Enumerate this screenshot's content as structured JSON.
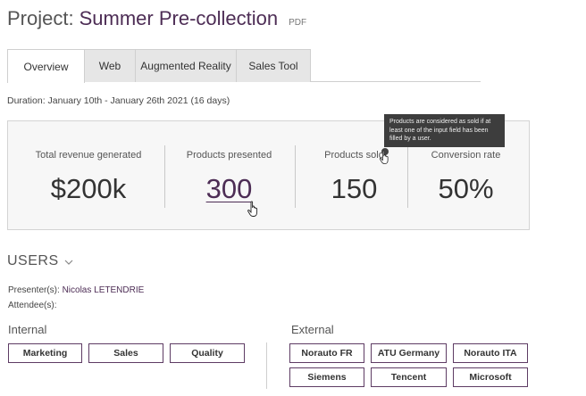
{
  "header": {
    "title_prefix": "Project:",
    "project_name": "Summer Pre-collection",
    "pdf_label": "PDF"
  },
  "tabs": [
    {
      "label": "Overview",
      "active": true
    },
    {
      "label": "Web",
      "active": false
    },
    {
      "label": "Augmented Reality",
      "active": false
    },
    {
      "label": "Sales Tool",
      "active": false
    }
  ],
  "duration": "Duration: January 10th - January 26th 2021 (16 days)",
  "stats": [
    {
      "label": "Total revenue generated",
      "value": "$200k"
    },
    {
      "label": "Products presented",
      "value": "300"
    },
    {
      "label": "Products sold",
      "value": "150"
    },
    {
      "label": "Conversion rate",
      "value": "50%"
    }
  ],
  "tooltip": "Products are considered as sold if at least one of the input field has been filled by a user.",
  "users": {
    "heading": "USERS",
    "presenters_label": "Presenter(s):",
    "presenter_name": "Nicolas LETENDRIE",
    "attendees_label": "Attendee(s):",
    "internal_label": "Internal",
    "external_label": "External",
    "internal_tags": [
      "Marketing",
      "Sales",
      "Quality"
    ],
    "external_tags": [
      "Norauto FR",
      "ATU Germany",
      "Norauto ITA",
      "Siemens",
      "Tencent",
      "Microsoft"
    ]
  },
  "colors": {
    "brand": "#4d2d55",
    "tag_border": "#5e3c64",
    "tooltip_bg": "#3d3d3d"
  },
  "icons": [
    "chevron-down-icon",
    "info-icon",
    "hand-pointer-cursor"
  ]
}
